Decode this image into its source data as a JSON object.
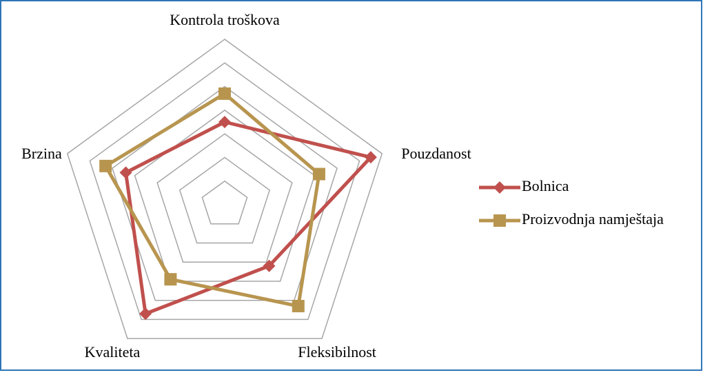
{
  "chart_data": {
    "type": "radar",
    "categories": [
      "Kontrola troškova",
      "Pouzdanost",
      "Fleksibilnost",
      "Kvaliteta",
      "Brzina"
    ],
    "series": [
      {
        "name": "Bolnica",
        "color": "#c0504d",
        "marker": "diamond",
        "values": [
          3.5,
          6.5,
          3.2,
          5.7,
          4.4
        ]
      },
      {
        "name": "Proizvodnja namještaja",
        "color": "#b8954f",
        "marker": "square",
        "values": [
          4.7,
          4.2,
          5.3,
          3.9,
          5.3
        ]
      }
    ],
    "rlim": [
      0,
      7
    ],
    "rticks": [
      1,
      2,
      3,
      4,
      5,
      6,
      7
    ],
    "grid": true,
    "legend": "right"
  }
}
